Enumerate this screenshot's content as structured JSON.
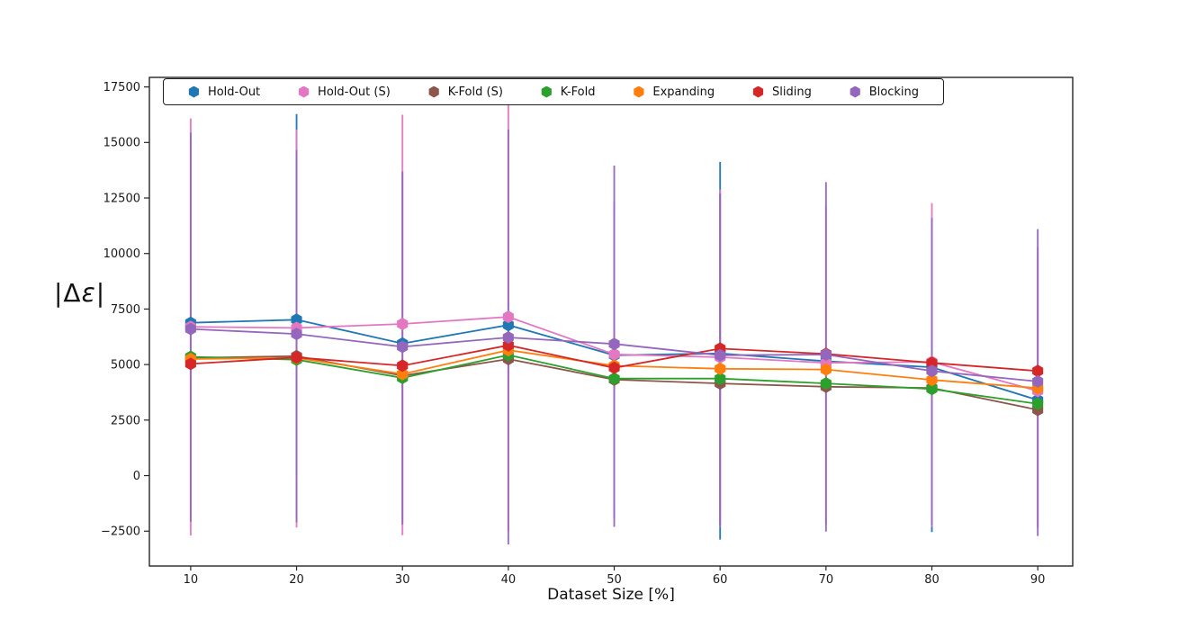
{
  "figure": {
    "background": "#ffffff"
  },
  "chart_data": {
    "type": "line",
    "title": "",
    "xlabel": "Dataset Size [%]",
    "ylabel": "|Δε|",
    "marker": "hexagon",
    "grid": false,
    "legend_position": "top-inside-horizontal",
    "x": [
      10,
      20,
      30,
      40,
      50,
      60,
      70,
      80,
      90
    ],
    "x_ticks": [
      10,
      20,
      30,
      40,
      50,
      60,
      70,
      80,
      90
    ],
    "y_ticks": [
      -2500,
      0,
      2500,
      5000,
      7500,
      10000,
      12500,
      15000,
      17500
    ],
    "xlim": [
      6.1,
      93.3
    ],
    "ylim": [
      -4070,
      17930
    ],
    "series": [
      {
        "name": "Hold-Out",
        "color": "#1f77b4",
        "values": [
          6880,
          7020,
          5950,
          6780,
          5420,
          5500,
          5150,
          4880,
          3400
        ],
        "err": [
          null,
          [
            0,
            16280
          ],
          null,
          null,
          null,
          [
            -2880,
            14120
          ],
          null,
          [
            -2540,
            11000
          ],
          null
        ]
      },
      {
        "name": "Hold-Out (S)",
        "color": "#e377c2",
        "values": [
          6700,
          6650,
          6830,
          7150,
          5460,
          5330,
          5080,
          5120,
          3810
        ],
        "err": [
          [
            -2700,
            16080
          ],
          [
            -2340,
            15580
          ],
          [
            -2680,
            16250
          ],
          [
            -2500,
            16930
          ],
          [
            -1900,
            12300
          ],
          [
            -2300,
            12880
          ],
          [
            -2200,
            12100
          ],
          [
            -2300,
            12270
          ],
          [
            -2350,
            10300
          ]
        ]
      },
      {
        "name": "K-Fold (S)",
        "color": "#8c564b",
        "values": [
          5300,
          5380,
          4500,
          5250,
          4320,
          4150,
          4000,
          3950,
          2960
        ],
        "err": null
      },
      {
        "name": "K-Fold",
        "color": "#2ca02c",
        "values": [
          5350,
          5220,
          4400,
          5430,
          4370,
          4370,
          4150,
          3900,
          3230
        ],
        "err": null
      },
      {
        "name": "Expanding",
        "color": "#ff7f0e",
        "values": [
          5250,
          5300,
          4570,
          5650,
          4950,
          4810,
          4780,
          4310,
          3940
        ],
        "err": null
      },
      {
        "name": "Sliding",
        "color": "#d62728",
        "values": [
          5030,
          5320,
          4950,
          5870,
          4850,
          5720,
          5480,
          5080,
          4710
        ],
        "err": null
      },
      {
        "name": "Blocking",
        "color": "#9467bd",
        "values": [
          6600,
          6380,
          5800,
          6220,
          5930,
          5420,
          5450,
          4710,
          4240
        ],
        "err": [
          [
            -2070,
            15440
          ],
          [
            -2100,
            14660
          ],
          [
            -2200,
            13690
          ],
          [
            -3100,
            15580
          ],
          [
            -2310,
            13960
          ],
          [
            -2270,
            12700
          ],
          [
            -2520,
            13215
          ],
          [
            -2250,
            11600
          ],
          [
            -2720,
            11100
          ]
        ]
      }
    ]
  }
}
